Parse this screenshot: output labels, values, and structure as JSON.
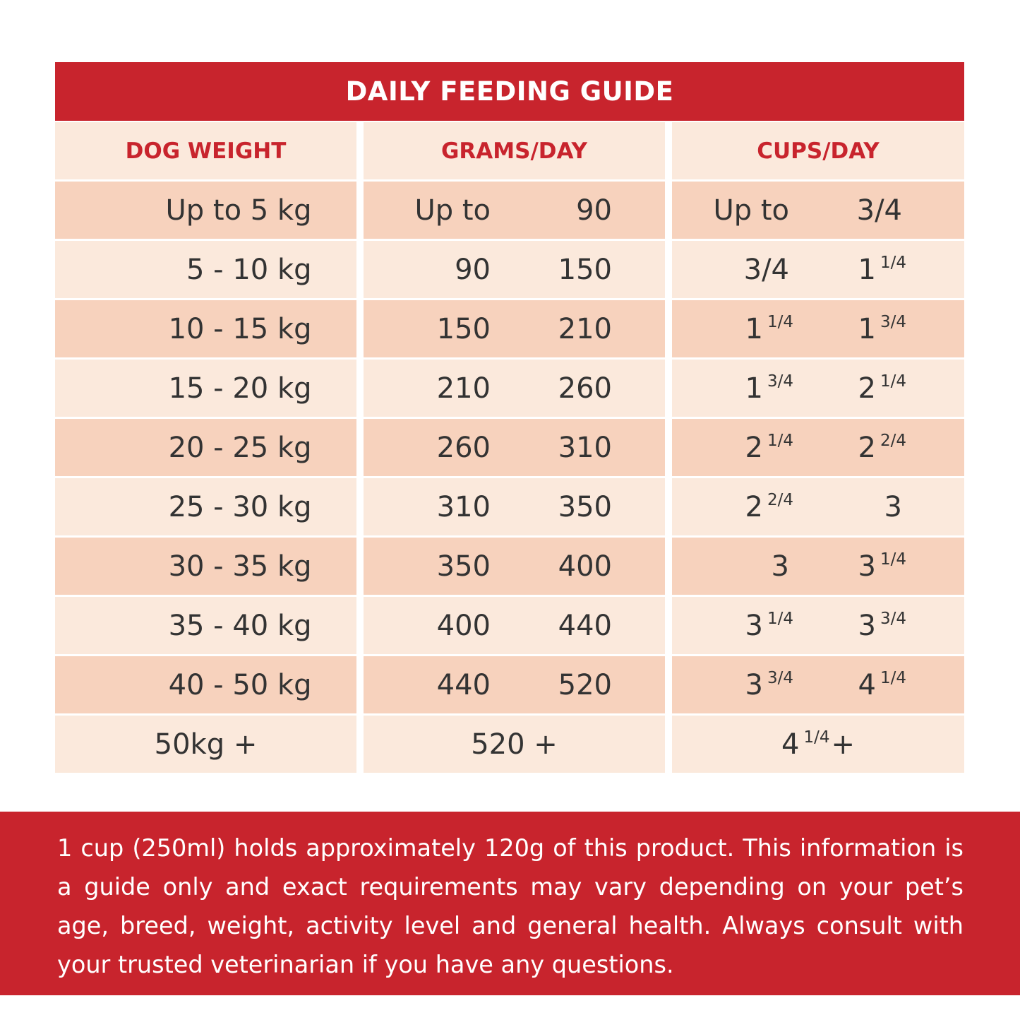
{
  "title": "DAILY FEEDING GUIDE",
  "headers": {
    "weight": "DOG WEIGHT",
    "grams": "GRAMS/DAY",
    "cups": "CUPS/DAY"
  },
  "rows": [
    {
      "weight": "Up to 5 kg",
      "g_from": "Up to",
      "g_to": "90",
      "c_from": "Up to",
      "c_from_frac": "",
      "c_to": "3/4",
      "c_to_frac": ""
    },
    {
      "weight": "5 - 10 kg",
      "g_from": "90",
      "g_to": "150",
      "c_from": "3/4",
      "c_from_frac": "",
      "c_to": "1",
      "c_to_frac": "1/4"
    },
    {
      "weight": "10 - 15 kg",
      "g_from": "150",
      "g_to": "210",
      "c_from": "1",
      "c_from_frac": "1/4",
      "c_to": "1",
      "c_to_frac": "3/4"
    },
    {
      "weight": "15 - 20 kg",
      "g_from": "210",
      "g_to": "260",
      "c_from": "1",
      "c_from_frac": "3/4",
      "c_to": "2",
      "c_to_frac": "1/4"
    },
    {
      "weight": "20 - 25 kg",
      "g_from": "260",
      "g_to": "310",
      "c_from": "2",
      "c_from_frac": "1/4",
      "c_to": "2",
      "c_to_frac": "2/4"
    },
    {
      "weight": "25 - 30 kg",
      "g_from": "310",
      "g_to": "350",
      "c_from": "2",
      "c_from_frac": "2/4",
      "c_to": "3",
      "c_to_frac": ""
    },
    {
      "weight": "30 - 35 kg",
      "g_from": "350",
      "g_to": "400",
      "c_from": "3",
      "c_from_frac": "",
      "c_to": "3",
      "c_to_frac": "1/4"
    },
    {
      "weight": "35 - 40 kg",
      "g_from": "400",
      "g_to": "440",
      "c_from": "3",
      "c_from_frac": "1/4",
      "c_to": "3",
      "c_to_frac": "3/4"
    },
    {
      "weight": "40 - 50 kg",
      "g_from": "440",
      "g_to": "520",
      "c_from": "3",
      "c_from_frac": "3/4",
      "c_to": "4",
      "c_to_frac": "1/4"
    }
  ],
  "last_row": {
    "weight": "50kg +",
    "grams": "520 +",
    "cups": "4",
    "cups_frac": "1/4",
    "cups_suffix": "+"
  },
  "note": "1 cup (250ml) holds approximately 120g of this product. This information is a guide only and exact requirements may vary depending on your pet’s age, breed, weight, activity level and general health. Always consult with your trusted veterinarian if you have any questions.",
  "colors": {
    "accent_red": "#c8242d",
    "row_light": "#fbe9dc",
    "row_dark": "#f7d2bd",
    "text": "#333333"
  }
}
